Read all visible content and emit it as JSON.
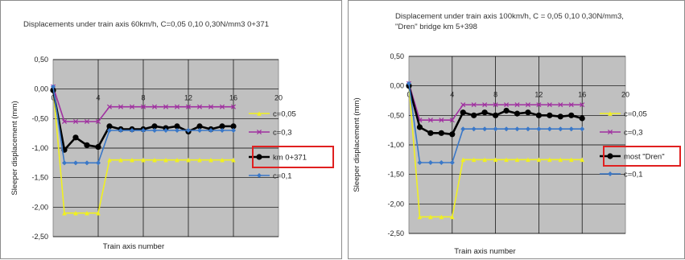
{
  "chart_data": [
    {
      "type": "line",
      "title_lines": [
        "Displacements under train axis 60km/h, C=0,05 0,10 0,30N/mm3 0+371"
      ],
      "xlabel": "Train axis number",
      "ylabel": "Sleeper displacement (mm)",
      "xlim": [
        0,
        20
      ],
      "ylim": [
        -2.5,
        0.5
      ],
      "x_ticks": [
        "0",
        "4",
        "8",
        "12",
        "16",
        "20"
      ],
      "y_ticks": [
        "0,50",
        "0,00",
        "-0,50",
        "-1,00",
        "-1,50",
        "-2,00",
        "-2,50"
      ],
      "grid": true,
      "legend_position": "right",
      "highlighted_series": "km 0+371",
      "highlight_color": "#e02020",
      "series": [
        {
          "name": "c=0,05",
          "color": "#f0f020",
          "marker": "triangle",
          "x": [
            0,
            1,
            2,
            3,
            4,
            5,
            6,
            7,
            8,
            9,
            10,
            11,
            12,
            13,
            14,
            15,
            16
          ],
          "y": [
            0.02,
            -2.1,
            -2.1,
            -2.1,
            -2.1,
            -1.2,
            -1.2,
            -1.2,
            -1.2,
            -1.2,
            -1.2,
            -1.2,
            -1.2,
            -1.2,
            -1.2,
            -1.2,
            -1.2
          ]
        },
        {
          "name": "c=0,3",
          "color": "#a030a0",
          "marker": "cross",
          "x": [
            0,
            1,
            2,
            3,
            4,
            5,
            6,
            7,
            8,
            9,
            10,
            11,
            12,
            13,
            14,
            15,
            16
          ],
          "y": [
            0.04,
            -0.55,
            -0.55,
            -0.55,
            -0.55,
            -0.3,
            -0.3,
            -0.3,
            -0.3,
            -0.3,
            -0.3,
            -0.3,
            -0.3,
            -0.3,
            -0.3,
            -0.3,
            -0.3
          ]
        },
        {
          "name": "km 0+371",
          "color": "#000000",
          "marker": "circle",
          "thick": true,
          "x": [
            0,
            1,
            2,
            3,
            4,
            5,
            6,
            7,
            8,
            9,
            10,
            11,
            12,
            13,
            14,
            15,
            16
          ],
          "y": [
            -0.02,
            -1.03,
            -0.82,
            -0.95,
            -0.98,
            -0.63,
            -0.68,
            -0.68,
            -0.68,
            -0.63,
            -0.66,
            -0.63,
            -0.72,
            -0.63,
            -0.68,
            -0.63,
            -0.63
          ]
        },
        {
          "name": "c=0,1",
          "color": "#3a78c8",
          "marker": "diamond",
          "x": [
            0,
            1,
            2,
            3,
            4,
            5,
            6,
            7,
            8,
            9,
            10,
            11,
            12,
            13,
            14,
            15,
            16
          ],
          "y": [
            0.04,
            -1.25,
            -1.25,
            -1.25,
            -1.25,
            -0.7,
            -0.7,
            -0.7,
            -0.7,
            -0.7,
            -0.7,
            -0.7,
            -0.7,
            -0.7,
            -0.7,
            -0.7,
            -0.7
          ]
        }
      ]
    },
    {
      "type": "line",
      "title_lines": [
        "Displacement under train axis 100km/h, C = 0,05 0,10 0,30N/mm3,",
        "\"Dren\" bridge km 5+398"
      ],
      "xlabel": "Train axis number",
      "ylabel": "Sleeper displacement (mm)",
      "xlim": [
        0,
        20
      ],
      "ylim": [
        -2.5,
        0.5
      ],
      "x_ticks": [
        "0",
        "4",
        "8",
        "12",
        "16",
        "20"
      ],
      "y_ticks": [
        "0,50",
        "0,00",
        "-0,50",
        "-1,00",
        "-1,50",
        "-2,00",
        "-2,50"
      ],
      "grid": true,
      "legend_position": "right",
      "highlighted_series": "most \"Dren\"",
      "highlight_color": "#e02020",
      "series": [
        {
          "name": "c=0,05",
          "color": "#f0f020",
          "marker": "triangle",
          "x": [
            0,
            1,
            2,
            3,
            4,
            5,
            6,
            7,
            8,
            9,
            10,
            11,
            12,
            13,
            14,
            15,
            16
          ],
          "y": [
            0.02,
            -2.22,
            -2.22,
            -2.22,
            -2.22,
            -1.25,
            -1.25,
            -1.25,
            -1.25,
            -1.25,
            -1.25,
            -1.25,
            -1.25,
            -1.25,
            -1.25,
            -1.25,
            -1.25
          ]
        },
        {
          "name": "c=0,3",
          "color": "#a030a0",
          "marker": "cross",
          "x": [
            0,
            1,
            2,
            3,
            4,
            5,
            6,
            7,
            8,
            9,
            10,
            11,
            12,
            13,
            14,
            15,
            16
          ],
          "y": [
            0.04,
            -0.58,
            -0.58,
            -0.58,
            -0.58,
            -0.32,
            -0.32,
            -0.32,
            -0.32,
            -0.32,
            -0.32,
            -0.32,
            -0.32,
            -0.32,
            -0.32,
            -0.32,
            -0.32
          ]
        },
        {
          "name": "most \"Dren\"",
          "color": "#000000",
          "marker": "circle",
          "thick": true,
          "x": [
            0,
            1,
            2,
            3,
            4,
            5,
            6,
            7,
            8,
            9,
            10,
            11,
            12,
            13,
            14,
            15,
            16
          ],
          "y": [
            0.0,
            -0.7,
            -0.8,
            -0.8,
            -0.82,
            -0.45,
            -0.5,
            -0.45,
            -0.5,
            -0.42,
            -0.47,
            -0.45,
            -0.5,
            -0.5,
            -0.52,
            -0.5,
            -0.55
          ]
        },
        {
          "name": "c=0,1",
          "color": "#3a78c8",
          "marker": "diamond",
          "x": [
            0,
            1,
            2,
            3,
            4,
            5,
            6,
            7,
            8,
            9,
            10,
            11,
            12,
            13,
            14,
            15,
            16
          ],
          "y": [
            0.04,
            -1.3,
            -1.3,
            -1.3,
            -1.3,
            -0.73,
            -0.73,
            -0.73,
            -0.73,
            -0.73,
            -0.73,
            -0.73,
            -0.73,
            -0.73,
            -0.73,
            -0.73,
            -0.73
          ]
        }
      ]
    }
  ]
}
